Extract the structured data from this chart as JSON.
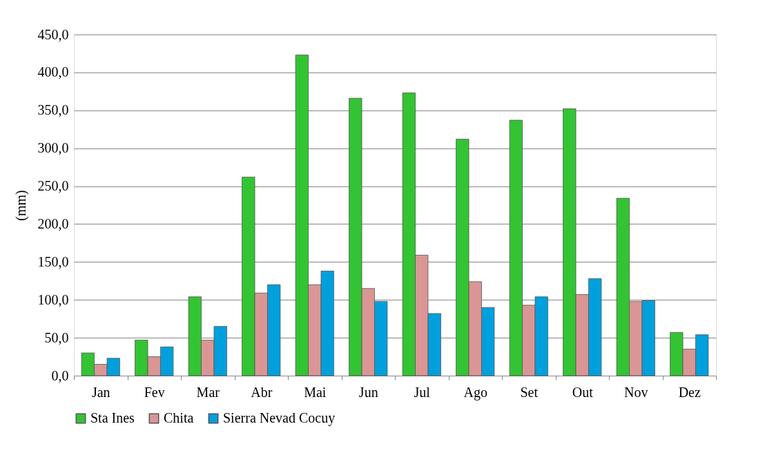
{
  "chart_data": {
    "type": "bar",
    "ylabel": "(mm)",
    "categories": [
      "Jan",
      "Fev",
      "Mar",
      "Abr",
      "Mai",
      "Jun",
      "Jul",
      "Ago",
      "Set",
      "Out",
      "Nov",
      "Dez"
    ],
    "series": [
      {
        "name": "Sta Ines",
        "color": "#33c433",
        "values": [
          30,
          47,
          104,
          262,
          423,
          366,
          373,
          312,
          337,
          352,
          234,
          57
        ]
      },
      {
        "name": "Chita",
        "color": "#d99694",
        "values": [
          15,
          25,
          47,
          109,
          120,
          115,
          159,
          124,
          93,
          107,
          98,
          35
        ]
      },
      {
        "name": "Sierra Nevad Cocuy",
        "color": "#00a0dc",
        "values": [
          23,
          38,
          65,
          120,
          138,
          98,
          82,
          90,
          104,
          128,
          99,
          54
        ]
      }
    ],
    "ylim": [
      0,
      450
    ],
    "yticks": [
      {
        "value": 0,
        "label": "0,0"
      },
      {
        "value": 50,
        "label": "50,0"
      },
      {
        "value": 100,
        "label": "100,0"
      },
      {
        "value": 150,
        "label": "150,0"
      },
      {
        "value": 200,
        "label": "200,0"
      },
      {
        "value": 250,
        "label": "250,0"
      },
      {
        "value": 300,
        "label": "300,0"
      },
      {
        "value": 350,
        "label": "350,0"
      },
      {
        "value": 400,
        "label": "400,0"
      },
      {
        "value": 450,
        "label": "450,0"
      }
    ],
    "grid": "y",
    "legend": "bottom"
  }
}
